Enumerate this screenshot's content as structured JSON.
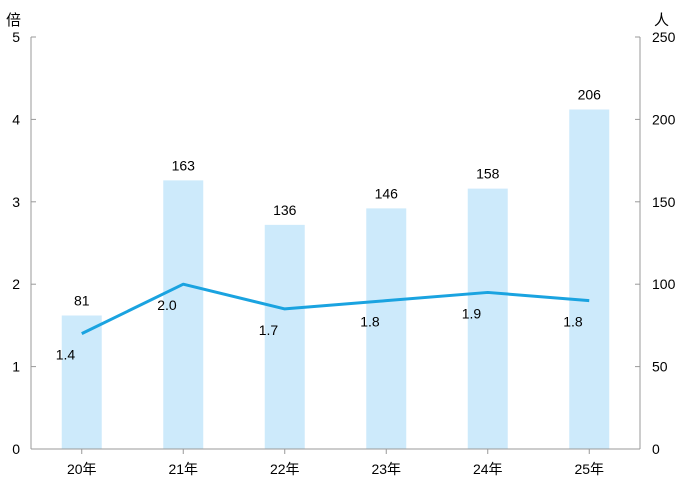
{
  "chart_data": {
    "type": "bar+line",
    "categories": [
      "20年",
      "21年",
      "22年",
      "23年",
      "24年",
      "25年"
    ],
    "bar_series": {
      "values": [
        81,
        163,
        136,
        146,
        158,
        206
      ],
      "axis": "right",
      "color": "#cdeafb"
    },
    "line_series": {
      "values": [
        1.4,
        2.0,
        1.7,
        1.8,
        1.9,
        1.8
      ],
      "axis": "left",
      "color": "#1aa3e0"
    },
    "left_axis": {
      "unit_label": "倍",
      "range": [
        0,
        5
      ],
      "ticks": [
        "0",
        "1",
        "2",
        "3",
        "4",
        "5"
      ]
    },
    "right_axis": {
      "unit_label": "人",
      "range": [
        0,
        250
      ],
      "ticks": [
        "0",
        "50",
        "100",
        "150",
        "200",
        "250"
      ]
    },
    "grid": false,
    "legend": "none"
  }
}
